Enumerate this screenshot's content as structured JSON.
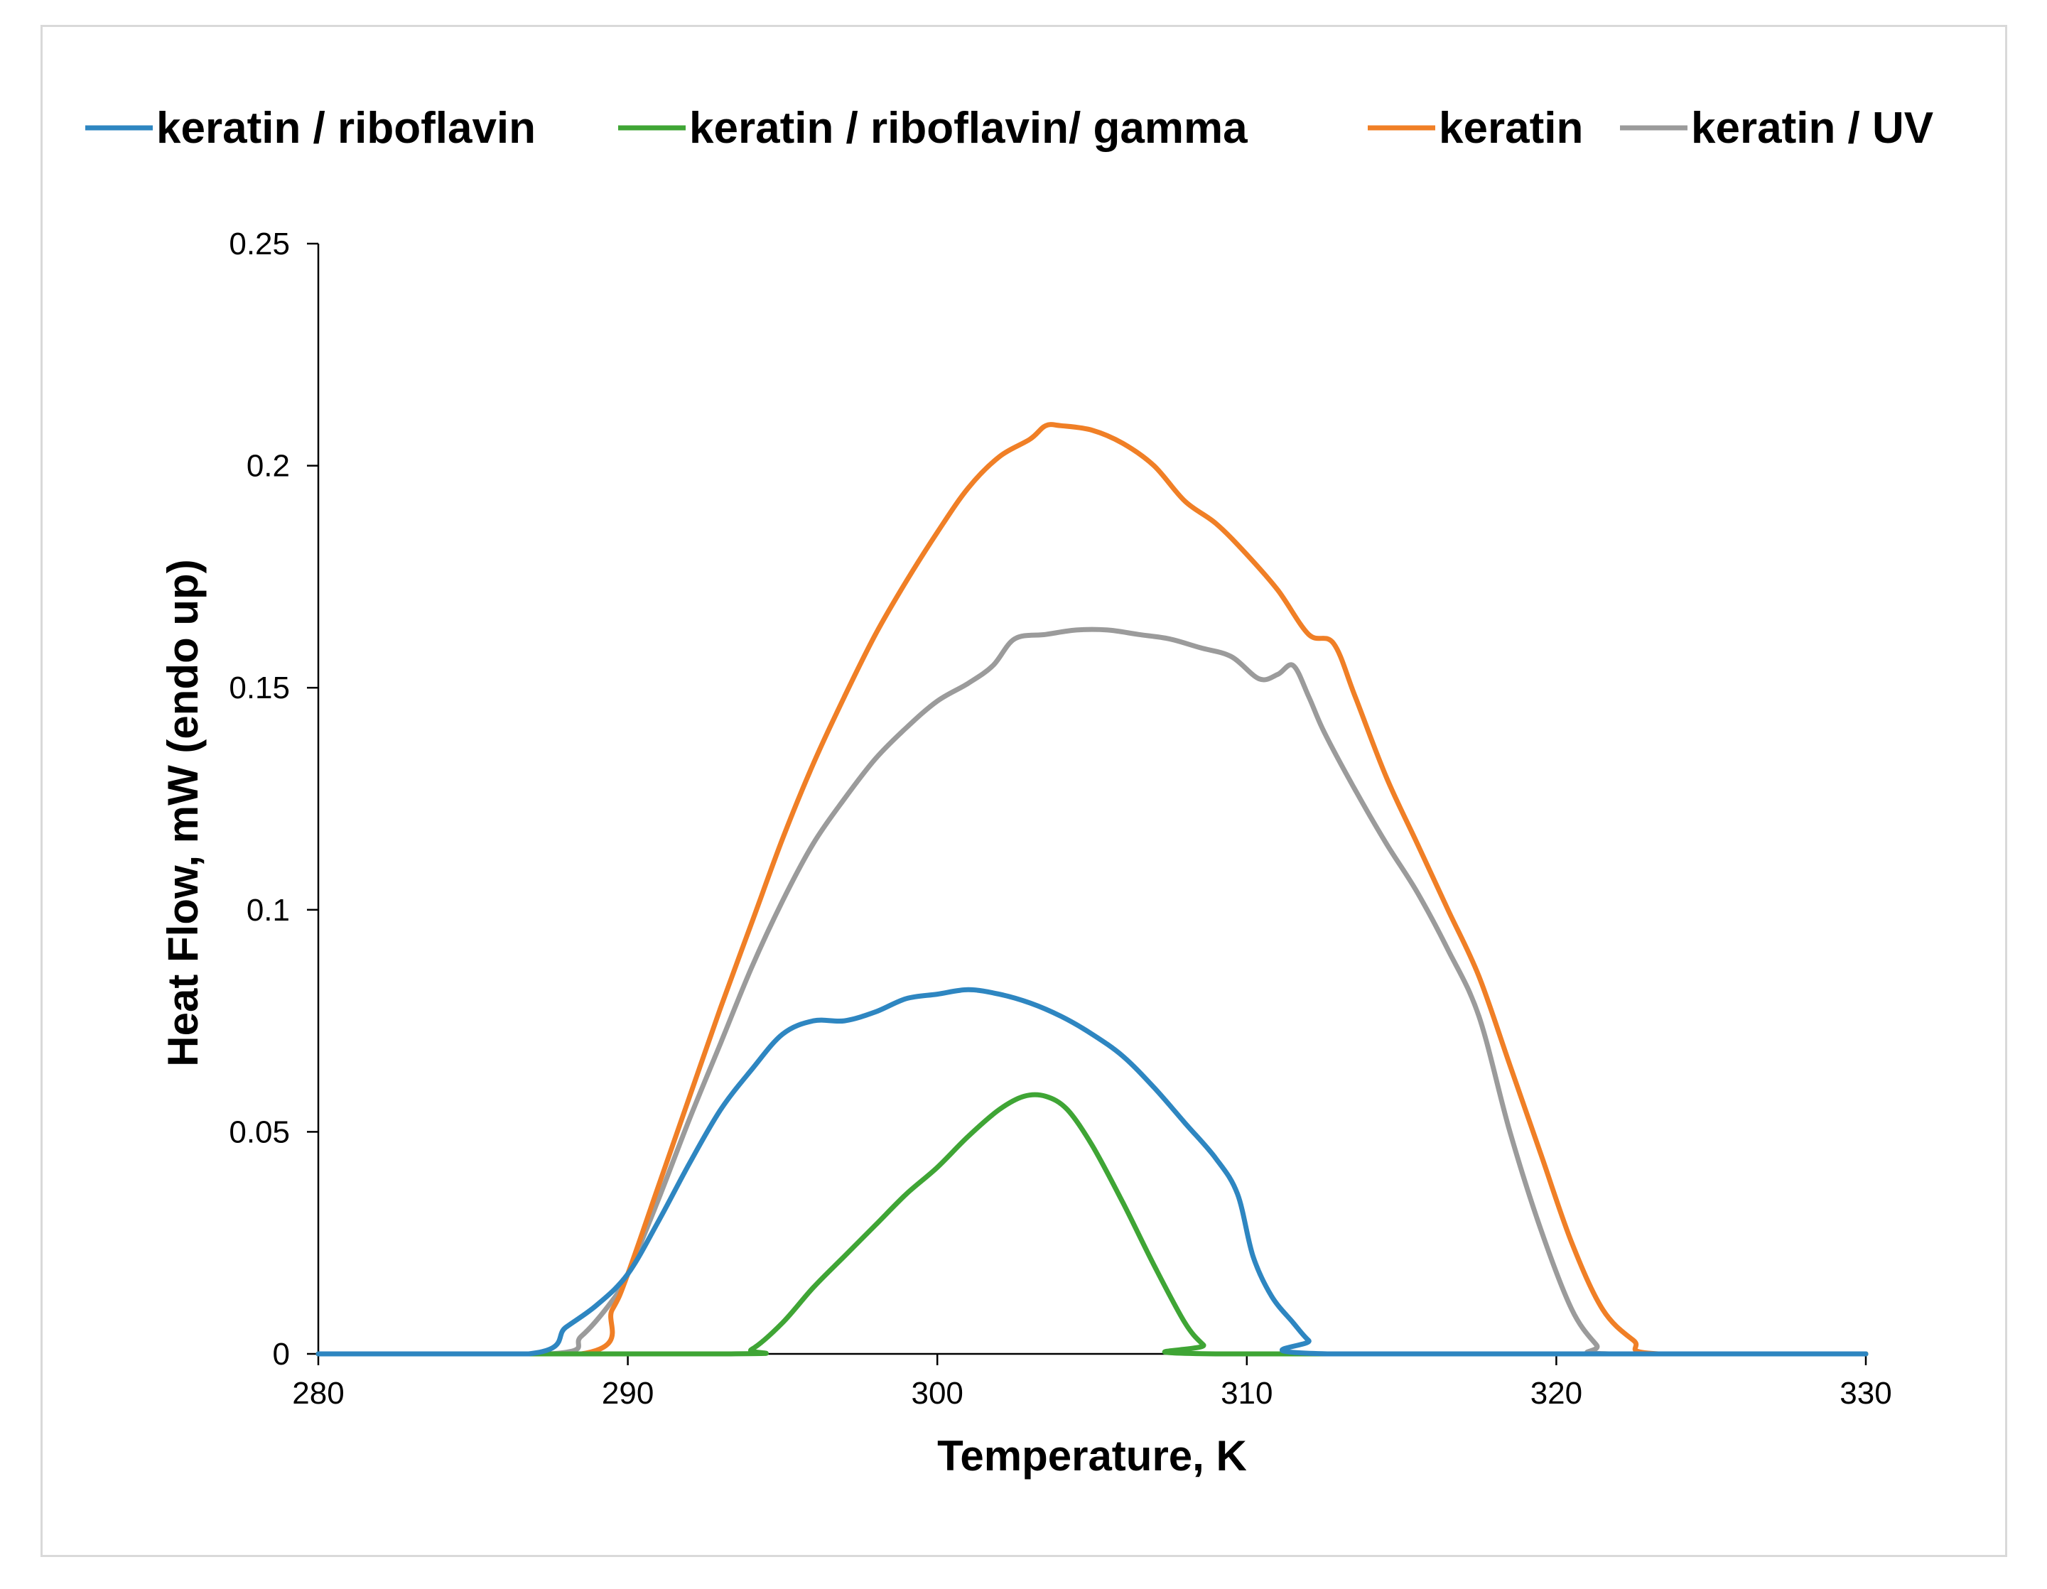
{
  "chart_data": {
    "type": "line",
    "title": "",
    "xlabel": "Temperature, K",
    "ylabel": "Heat Flow,  mW (endo up)",
    "xlim": [
      280,
      330
    ],
    "ylim": [
      0,
      0.25
    ],
    "x_ticks": [
      280,
      290,
      300,
      310,
      320,
      330
    ],
    "x_tick_labels": [
      "280",
      "290",
      "300",
      "310",
      "320",
      "330"
    ],
    "y_ticks": [
      0,
      0.05,
      0.1,
      0.15,
      0.2,
      0.25
    ],
    "y_tick_labels": [
      "0",
      "0.05",
      "0.1",
      "0.15",
      "0.2",
      "0.25"
    ],
    "grid": false,
    "legend_position": "top",
    "series": [
      {
        "name": "keratin / riboflavin",
        "color": "#2E86C1",
        "points": [
          [
            280,
            0
          ],
          [
            286.8,
            0
          ],
          [
            288,
            0.006
          ],
          [
            289,
            0.011
          ],
          [
            290,
            0.018
          ],
          [
            291,
            0.03
          ],
          [
            292,
            0.043
          ],
          [
            293,
            0.055
          ],
          [
            294,
            0.064
          ],
          [
            295,
            0.072
          ],
          [
            296,
            0.075
          ],
          [
            297,
            0.075
          ],
          [
            298,
            0.077
          ],
          [
            299,
            0.08
          ],
          [
            300,
            0.081
          ],
          [
            301,
            0.082
          ],
          [
            302,
            0.081
          ],
          [
            303,
            0.079
          ],
          [
            304,
            0.076
          ],
          [
            305,
            0.072
          ],
          [
            306,
            0.067
          ],
          [
            307,
            0.06
          ],
          [
            308,
            0.052
          ],
          [
            309,
            0.044
          ],
          [
            309.7,
            0.036
          ],
          [
            310.2,
            0.022
          ],
          [
            310.8,
            0.013
          ],
          [
            311.5,
            0.007
          ],
          [
            312,
            0.003
          ],
          [
            312.6,
            0
          ],
          [
            330,
            0
          ]
        ]
      },
      {
        "name": "keratin / riboflavin/ gamma",
        "color": "#3FA535",
        "points": [
          [
            280,
            0
          ],
          [
            293.3,
            0
          ],
          [
            294,
            0.001
          ],
          [
            295,
            0.007
          ],
          [
            296,
            0.015
          ],
          [
            297,
            0.022
          ],
          [
            298,
            0.029
          ],
          [
            299,
            0.036
          ],
          [
            300,
            0.042
          ],
          [
            301,
            0.049
          ],
          [
            302,
            0.055
          ],
          [
            302.8,
            0.058
          ],
          [
            303.5,
            0.058
          ],
          [
            304.2,
            0.055
          ],
          [
            305,
            0.047
          ],
          [
            306,
            0.034
          ],
          [
            307,
            0.02
          ],
          [
            308,
            0.007
          ],
          [
            308.6,
            0.002
          ],
          [
            309,
            0
          ],
          [
            330,
            0
          ]
        ]
      },
      {
        "name": "keratin",
        "color": "#F07F26",
        "points": [
          [
            280,
            0
          ],
          [
            288.5,
            0
          ],
          [
            289.5,
            0.01
          ],
          [
            290,
            0.018
          ],
          [
            291,
            0.038
          ],
          [
            292,
            0.058
          ],
          [
            293,
            0.078
          ],
          [
            294,
            0.097
          ],
          [
            295,
            0.116
          ],
          [
            296,
            0.133
          ],
          [
            297,
            0.148
          ],
          [
            298,
            0.162
          ],
          [
            299,
            0.174
          ],
          [
            300,
            0.185
          ],
          [
            301,
            0.195
          ],
          [
            302,
            0.202
          ],
          [
            303,
            0.206
          ],
          [
            303.5,
            0.209
          ],
          [
            304,
            0.209
          ],
          [
            305,
            0.208
          ],
          [
            306,
            0.205
          ],
          [
            307,
            0.2
          ],
          [
            308,
            0.192
          ],
          [
            309,
            0.187
          ],
          [
            310,
            0.18
          ],
          [
            311,
            0.172
          ],
          [
            312,
            0.162
          ],
          [
            312.8,
            0.16
          ],
          [
            313.5,
            0.148
          ],
          [
            314.5,
            0.13
          ],
          [
            315.5,
            0.115
          ],
          [
            316.5,
            0.1
          ],
          [
            317.5,
            0.085
          ],
          [
            318.5,
            0.065
          ],
          [
            319.5,
            0.045
          ],
          [
            320.5,
            0.025
          ],
          [
            321.5,
            0.01
          ],
          [
            322.5,
            0.003
          ],
          [
            323.3,
            0
          ],
          [
            330,
            0
          ]
        ]
      },
      {
        "name": "keratin / UV",
        "color": "#9B9B9B",
        "points": [
          [
            280,
            0
          ],
          [
            287.5,
            0
          ],
          [
            288.5,
            0.004
          ],
          [
            289.5,
            0.012
          ],
          [
            290,
            0.018
          ],
          [
            291,
            0.035
          ],
          [
            292,
            0.053
          ],
          [
            293,
            0.07
          ],
          [
            294,
            0.087
          ],
          [
            295,
            0.102
          ],
          [
            296,
            0.115
          ],
          [
            297,
            0.125
          ],
          [
            298,
            0.134
          ],
          [
            299,
            0.141
          ],
          [
            300,
            0.147
          ],
          [
            301,
            0.151
          ],
          [
            301.8,
            0.155
          ],
          [
            302.5,
            0.161
          ],
          [
            303.5,
            0.162
          ],
          [
            304.5,
            0.163
          ],
          [
            305.5,
            0.163
          ],
          [
            306.5,
            0.162
          ],
          [
            307.5,
            0.161
          ],
          [
            308.5,
            0.159
          ],
          [
            309.5,
            0.157
          ],
          [
            310.4,
            0.152
          ],
          [
            311,
            0.153
          ],
          [
            311.5,
            0.155
          ],
          [
            312,
            0.148
          ],
          [
            312.5,
            0.14
          ],
          [
            313.5,
            0.127
          ],
          [
            314.5,
            0.115
          ],
          [
            315.5,
            0.104
          ],
          [
            316.5,
            0.091
          ],
          [
            317.5,
            0.076
          ],
          [
            318.5,
            0.05
          ],
          [
            319.5,
            0.028
          ],
          [
            320.5,
            0.01
          ],
          [
            321.3,
            0.002
          ],
          [
            321.7,
            0
          ],
          [
            330,
            0
          ]
        ]
      }
    ]
  }
}
